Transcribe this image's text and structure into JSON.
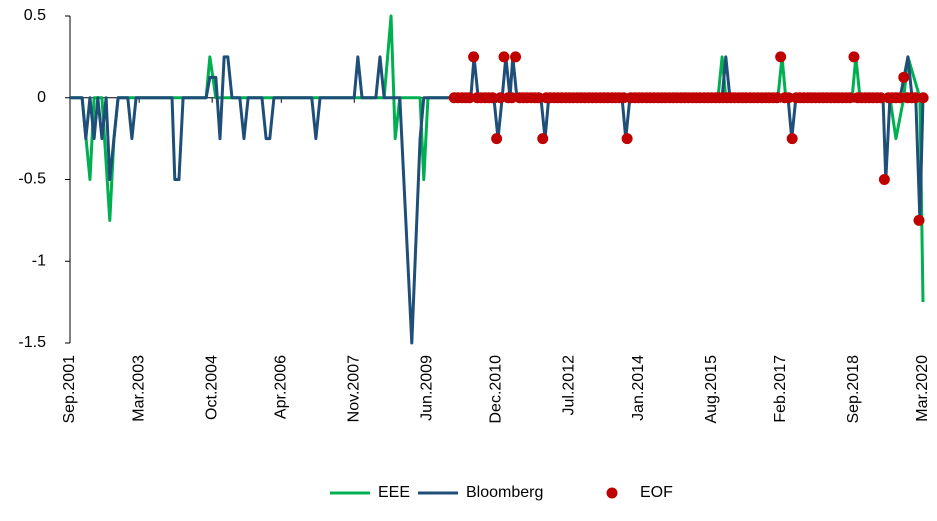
{
  "chart_data": {
    "type": "line",
    "xlim": [
      2001.667,
      2020.167
    ],
    "xticks": [
      {
        "value": 2001.667,
        "label": "Sep.2001"
      },
      {
        "value": 2003.167,
        "label": "Mar.2003"
      },
      {
        "value": 2004.75,
        "label": "Oct.2004"
      },
      {
        "value": 2006.25,
        "label": "Apr.2006"
      },
      {
        "value": 2007.833,
        "label": "Nov.2007"
      },
      {
        "value": 2009.417,
        "label": "Jun.2009"
      },
      {
        "value": 2010.917,
        "label": "Dec.2010"
      },
      {
        "value": 2012.5,
        "label": "Jul.2012"
      },
      {
        "value": 2014.0,
        "label": "Jan.2014"
      },
      {
        "value": 2015.583,
        "label": "Aug.2015"
      },
      {
        "value": 2017.083,
        "label": "Feb.2017"
      },
      {
        "value": 2018.667,
        "label": "Sep.2018"
      },
      {
        "value": 2020.167,
        "label": "Mar.2020"
      }
    ],
    "ylim": [
      -1.5,
      0.5
    ],
    "yticks": [
      0.5,
      0,
      -0.5,
      -1,
      -1.5
    ],
    "series": [
      {
        "name": "EEE",
        "color": "#00b050",
        "mode": "line",
        "x": [
          2001.667,
          2001.93,
          2002.1,
          2002.19,
          2002.36,
          2002.53,
          2002.62,
          2002.71,
          2004.62,
          2004.7,
          2004.83,
          2008.48,
          2008.63,
          2008.72,
          2008.82,
          2009.26,
          2009.34,
          2009.43,
          2015.72,
          2015.81,
          2015.89,
          2017.02,
          2017.11,
          2017.19,
          2018.63,
          2018.71,
          2018.8,
          2019.45,
          2019.58,
          2019.75,
          2019.84,
          2020.1,
          2020.167
        ],
        "values": [
          0,
          0,
          -0.5,
          0,
          0,
          -0.75,
          -0.25,
          0,
          0,
          0.25,
          0,
          0,
          0.5,
          -0.25,
          0,
          0,
          -0.5,
          0,
          0,
          0.25,
          0,
          0,
          0.25,
          0,
          0,
          0.25,
          0,
          0,
          -0.25,
          0,
          0.25,
          0,
          -1.25
        ]
      },
      {
        "name": "Bloomberg",
        "color": "#1f4e79",
        "mode": "line",
        "x": [
          2001.667,
          2001.93,
          2002.01,
          2002.1,
          2002.19,
          2002.27,
          2002.36,
          2002.45,
          2002.53,
          2002.62,
          2002.71,
          2002.92,
          2003.01,
          2003.1,
          2003.88,
          2003.94,
          2004.03,
          2004.12,
          2004.62,
          2004.7,
          2004.83,
          2004.92,
          2005.01,
          2005.09,
          2005.18,
          2005.35,
          2005.44,
          2005.53,
          2005.83,
          2005.92,
          2006.0,
          2006.09,
          2006.91,
          2007.0,
          2007.09,
          2007.83,
          2007.91,
          2008.0,
          2008.3,
          2008.39,
          2008.48,
          2008.82,
          2009.08,
          2009.26,
          2009.34,
          2010.36,
          2010.43,
          2010.52,
          2010.86,
          2010.95,
          2011.04,
          2011.12,
          2011.21,
          2011.27,
          2011.36,
          2011.88,
          2011.97,
          2012.05,
          2013.64,
          2013.72,
          2013.81,
          2015.81,
          2015.89,
          2015.98,
          2017.24,
          2017.32,
          2017.41,
          2019.3,
          2019.36,
          2019.45,
          2019.67,
          2019.84,
          2019.93,
          2020.01,
          2020.1,
          2020.167
        ],
        "values": [
          0,
          0,
          -0.25,
          0,
          -0.25,
          0,
          -0.25,
          0,
          -0.5,
          -0.25,
          0,
          0,
          -0.25,
          0,
          0,
          -0.5,
          -0.5,
          0,
          0,
          0.125,
          0.125,
          -0.25,
          0.25,
          0.25,
          0,
          0,
          -0.25,
          0,
          0,
          -0.25,
          -0.25,
          0,
          0,
          -0.25,
          0,
          0,
          0.25,
          0,
          0,
          0.25,
          0,
          0,
          -1.5,
          -0.25,
          0,
          0,
          0.25,
          0,
          0,
          -0.25,
          0,
          0.25,
          0,
          0.25,
          0,
          0,
          -0.25,
          0,
          0,
          -0.25,
          0,
          0,
          0.25,
          0,
          0,
          -0.25,
          0,
          0,
          -0.5,
          0,
          0,
          0.25,
          0,
          0,
          -0.75,
          0
        ]
      },
      {
        "name": "EOF",
        "color": "#c00000",
        "mode": "markers",
        "x": [
          2010.0,
          2010.08,
          2010.17,
          2010.25,
          2010.33,
          2010.42,
          2010.5,
          2010.58,
          2010.67,
          2010.75,
          2010.83,
          2010.92,
          2011.0,
          2011.08,
          2011.17,
          2011.25,
          2011.33,
          2011.42,
          2011.5,
          2011.58,
          2011.67,
          2011.75,
          2011.83,
          2011.92,
          2012.0,
          2012.08,
          2012.17,
          2012.25,
          2012.33,
          2012.42,
          2012.5,
          2012.58,
          2012.67,
          2012.75,
          2012.83,
          2012.92,
          2013.0,
          2013.08,
          2013.17,
          2013.25,
          2013.33,
          2013.42,
          2013.5,
          2013.58,
          2013.67,
          2013.75,
          2013.83,
          2013.92,
          2014.0,
          2014.08,
          2014.17,
          2014.25,
          2014.33,
          2014.42,
          2014.5,
          2014.58,
          2014.67,
          2014.75,
          2014.83,
          2014.92,
          2015.0,
          2015.08,
          2015.17,
          2015.25,
          2015.33,
          2015.42,
          2015.5,
          2015.58,
          2015.67,
          2015.75,
          2015.83,
          2015.92,
          2016.0,
          2016.08,
          2016.17,
          2016.25,
          2016.33,
          2016.42,
          2016.5,
          2016.58,
          2016.67,
          2016.75,
          2016.83,
          2016.92,
          2017.0,
          2017.08,
          2017.17,
          2017.25,
          2017.33,
          2017.42,
          2017.5,
          2017.58,
          2017.67,
          2017.75,
          2017.83,
          2017.92,
          2018.0,
          2018.08,
          2018.17,
          2018.25,
          2018.33,
          2018.42,
          2018.5,
          2018.58,
          2018.67,
          2018.75,
          2018.83,
          2018.92,
          2019.0,
          2019.08,
          2019.17,
          2019.25,
          2019.33,
          2019.42,
          2019.5,
          2019.58,
          2019.67,
          2019.75,
          2019.83,
          2019.92,
          2020.0,
          2020.08,
          2020.17
        ],
        "values": [
          0,
          0,
          0,
          0,
          0,
          0.25,
          0,
          0,
          0,
          0,
          0,
          -0.25,
          0,
          0.25,
          0,
          0,
          0.25,
          0,
          0,
          0,
          0,
          0,
          0,
          -0.25,
          0,
          0,
          0,
          0,
          0,
          0,
          0,
          0,
          0,
          0,
          0,
          0,
          0,
          0,
          0,
          0,
          0,
          0,
          0,
          0,
          0,
          -0.25,
          0,
          0,
          0,
          0,
          0,
          0,
          0,
          0,
          0,
          0,
          0,
          0,
          0,
          0,
          0,
          0,
          0,
          0,
          0,
          0,
          0,
          0,
          0,
          0,
          0,
          0,
          0,
          0,
          0,
          0,
          0,
          0,
          0,
          0,
          0,
          0,
          0,
          0,
          0,
          0.25,
          0,
          0,
          -0.25,
          0,
          0,
          0,
          0,
          0,
          0,
          0,
          0,
          0,
          0,
          0,
          0,
          0,
          0,
          0,
          0.25,
          0,
          0,
          0,
          0,
          0,
          0,
          0,
          -0.5,
          0,
          0,
          0,
          0,
          0.125,
          0,
          0,
          0,
          -0.75,
          0
        ]
      }
    ]
  }
}
